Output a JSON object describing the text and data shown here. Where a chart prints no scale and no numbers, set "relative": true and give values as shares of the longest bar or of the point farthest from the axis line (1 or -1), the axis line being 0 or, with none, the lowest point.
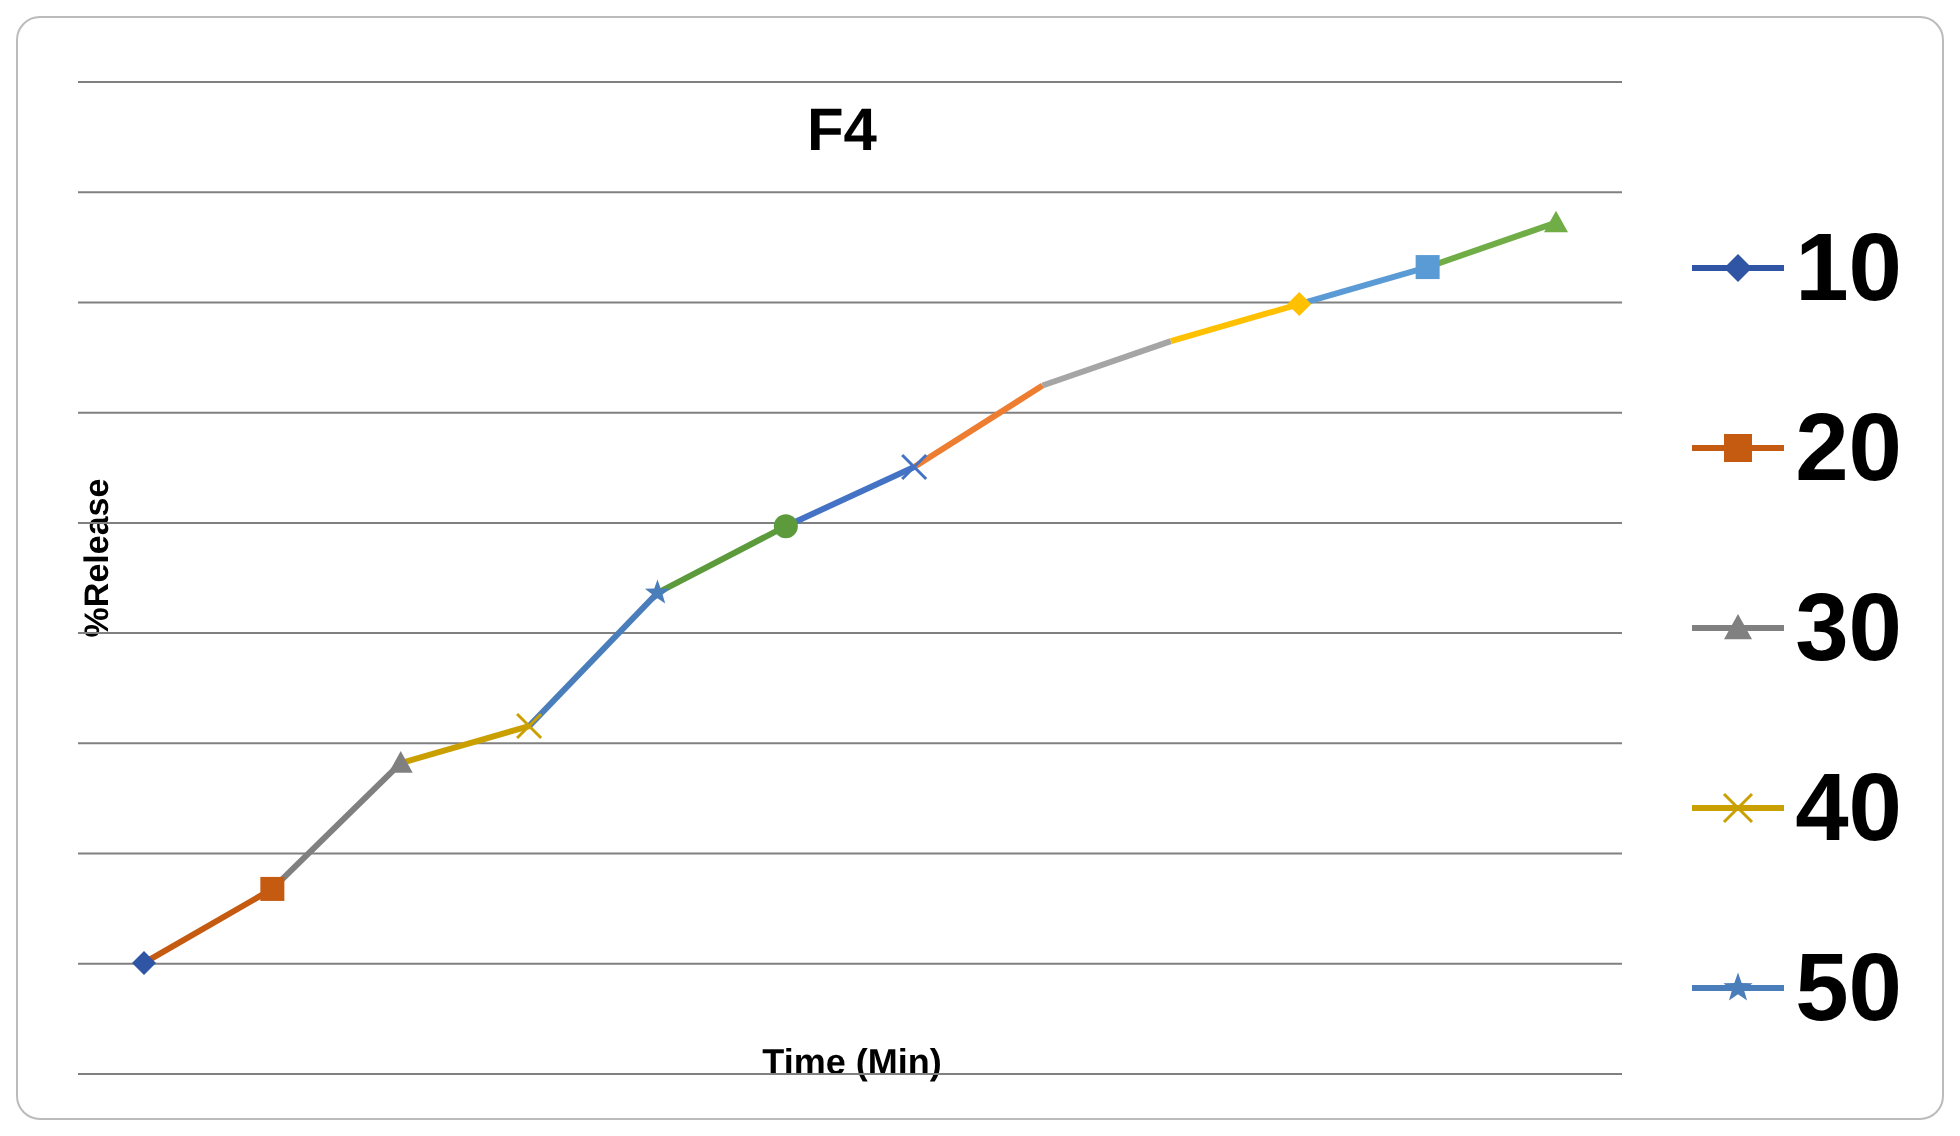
{
  "chart_data": {
    "type": "line",
    "title": "F4",
    "xlabel": "Time (Min)",
    "ylabel": "%Release",
    "relative": true,
    "grid": "y",
    "legend": "right",
    "categories": [
      null,
      null,
      null,
      null,
      null,
      null,
      null,
      null,
      null,
      null,
      null,
      null
    ],
    "series": [
      {
        "name": "10",
        "color": "#2f55a4",
        "marker": "diamond",
        "values": [
          0,
          null,
          null,
          null,
          null,
          null,
          null,
          null,
          null,
          null,
          null,
          null
        ]
      },
      {
        "name": "20",
        "color": "#c55a11",
        "marker": "square",
        "values": [
          0,
          0.1,
          null,
          null,
          null,
          null,
          null,
          null,
          null,
          null,
          null,
          null
        ]
      },
      {
        "name": "30",
        "color": "#808080",
        "marker": "triangle",
        "values": [
          null,
          0.1,
          0.27,
          null,
          null,
          null,
          null,
          null,
          null,
          null,
          null,
          null
        ]
      },
      {
        "name": "40",
        "color": "#c9a000",
        "marker": "cross",
        "values": [
          null,
          null,
          0.27,
          0.32,
          null,
          null,
          null,
          null,
          null,
          null,
          null,
          null
        ]
      },
      {
        "name": "50",
        "color": "#4a7ebb",
        "marker": "star",
        "values": [
          null,
          null,
          null,
          0.32,
          0.5,
          null,
          null,
          null,
          null,
          null,
          null,
          null
        ]
      },
      {
        "color": "#5c9a3c",
        "marker": "circle",
        "values": [
          null,
          null,
          null,
          null,
          0.5,
          0.59,
          null,
          null,
          null,
          null,
          null,
          null
        ]
      },
      {
        "color": "#4472c4",
        "marker": "cross",
        "values": [
          null,
          null,
          null,
          null,
          null,
          0.59,
          0.67,
          null,
          null,
          null,
          null,
          null
        ]
      },
      {
        "color": "#ed7d31",
        "marker": "none",
        "values": [
          null,
          null,
          null,
          null,
          null,
          null,
          0.67,
          0.78,
          null,
          null,
          null,
          null
        ]
      },
      {
        "color": "#a5a5a5",
        "marker": "none",
        "values": [
          null,
          null,
          null,
          null,
          null,
          null,
          null,
          0.78,
          0.84,
          null,
          null,
          null
        ]
      },
      {
        "color": "#ffc000",
        "marker": "diamond",
        "values": [
          null,
          null,
          null,
          null,
          null,
          null,
          null,
          null,
          0.84,
          0.89,
          null,
          null
        ]
      },
      {
        "color": "#5b9bd5",
        "marker": "square",
        "values": [
          null,
          null,
          null,
          null,
          null,
          null,
          null,
          null,
          null,
          0.89,
          0.94,
          null
        ]
      },
      {
        "color": "#70ad47",
        "marker": "triangle",
        "values": [
          null,
          null,
          null,
          null,
          null,
          null,
          null,
          null,
          null,
          null,
          0.94,
          1
        ]
      }
    ]
  }
}
